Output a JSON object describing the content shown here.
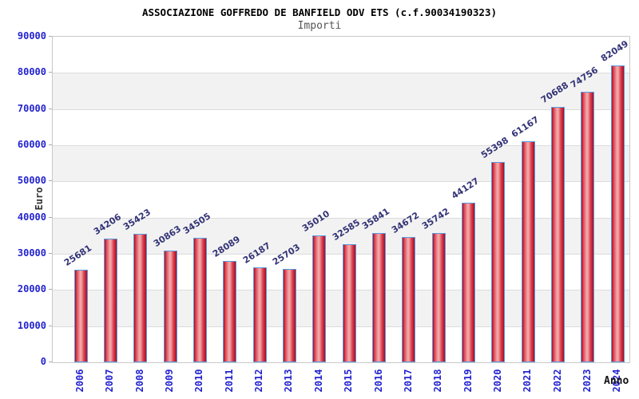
{
  "chart_data": {
    "type": "bar",
    "title": "ASSOCIAZIONE GOFFREDO DE BANFIELD ODV ETS (c.f.90034190323)",
    "subtitle": "Importi",
    "xlabel": "Anno",
    "ylabel": "Euro",
    "categories": [
      "2006",
      "2007",
      "2008",
      "2009",
      "2010",
      "2011",
      "2012",
      "2013",
      "2014",
      "2015",
      "2016",
      "2017",
      "2018",
      "2019",
      "2020",
      "2021",
      "2022",
      "2023",
      "2024"
    ],
    "values": [
      25681,
      34206,
      35423,
      30863,
      34505,
      28089,
      26187,
      25703,
      35010,
      32585,
      35841,
      34672,
      35742,
      44127,
      55398,
      61167,
      70688,
      74756,
      82049
    ],
    "ylim": [
      0,
      90000
    ],
    "ytick_step": 10000,
    "grid": true,
    "legend": "none",
    "colors": {
      "bar_edge": "#5b9ce0",
      "bar_dark": "#a50e22",
      "bar_mid": "#dd4050",
      "bar_light": "#f0a6a6",
      "axis_tick_label": "#2323d0",
      "value_label": "#333377",
      "band_gray": "#f2f2f2",
      "band_white": "#ffffff",
      "grid_line": "#dcdcdc",
      "plot_border": "#c8c8c8",
      "title": "#000000",
      "subtitle": "#555555",
      "axis_title": "#333333"
    }
  }
}
